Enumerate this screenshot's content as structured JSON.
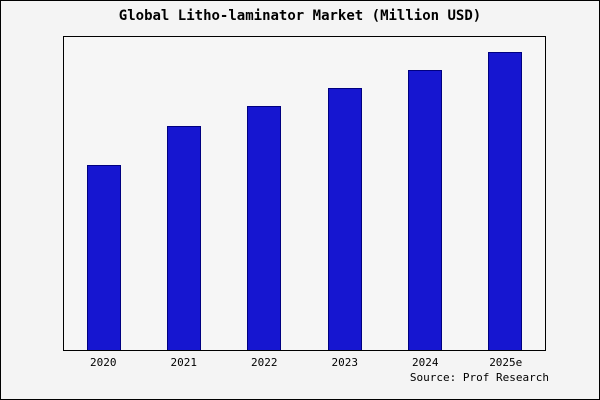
{
  "title": "Global Litho-laminator Market (Million USD)",
  "source": "Source: Prof Research",
  "chart_data": {
    "type": "bar",
    "title": "Global Litho-laminator Market (Million USD)",
    "categories": [
      "2020",
      "2021",
      "2022",
      "2023",
      "2024",
      "2025e"
    ],
    "values": [
      62,
      75,
      82,
      88,
      94,
      100
    ],
    "xlabel": "",
    "ylabel": "",
    "ylim": [
      0,
      105
    ],
    "y_axis_labels_visible": false,
    "grid": false,
    "legend_position": "none",
    "bar_color": "#1616d0",
    "bar_border_color": "#000080",
    "background_color": "#f4f4f4",
    "annotations": [
      "Source: Prof Research"
    ]
  }
}
